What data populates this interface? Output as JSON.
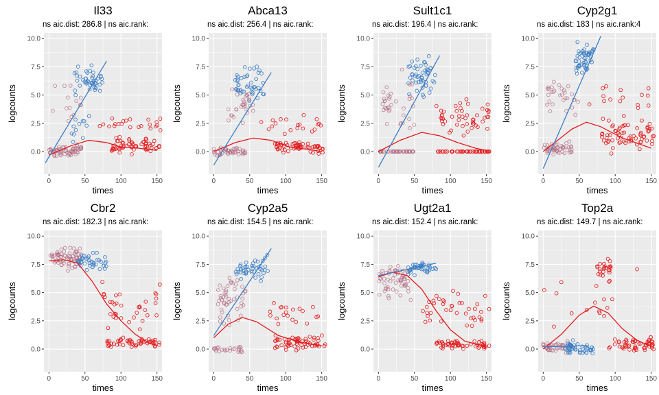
{
  "colors": {
    "panel_bg": "#ebebeb",
    "grid_major": "#ffffff",
    "tick_text": "#4d4d4d",
    "lineage_blue": "#3a7dc4",
    "lineage_red": "#e31a1c",
    "early_mixed": "#b0687f"
  },
  "chart_data": [
    {
      "type": "scatter",
      "title": "Il33",
      "subtitle": "ns aic.dist: 286.8 | ns aic.rank:",
      "xlabel": "times",
      "ylabel": "logcounts",
      "xlim": [
        -7,
        157
      ],
      "ylim": [
        -2,
        10.5
      ],
      "xticks": [
        0,
        50,
        100,
        150
      ],
      "yticks": [
        0.0,
        2.5,
        5.0,
        7.5,
        10.0
      ],
      "grid": true,
      "blue_trend": [
        [
          -5,
          -1
        ],
        [
          80,
          8
        ]
      ],
      "red_trend": [
        [
          0,
          -0.3
        ],
        [
          30,
          0.5
        ],
        [
          55,
          1.0
        ],
        [
          80,
          0.8
        ],
        [
          100,
          0.4
        ],
        [
          125,
          0.3
        ],
        [
          150,
          0.1
        ]
      ],
      "clusters": [
        {
          "x": [
            0,
            45
          ],
          "y": [
            -0.6,
            0.8
          ],
          "n": 60,
          "c": "early"
        },
        {
          "x": [
            0,
            45
          ],
          "y": [
            1.5,
            7.5
          ],
          "n": 14,
          "c": "early"
        },
        {
          "x": [
            35,
            75
          ],
          "y": [
            4.5,
            8.0
          ],
          "n": 45,
          "c": "blue"
        },
        {
          "x": [
            30,
            60
          ],
          "y": [
            0,
            4.5
          ],
          "n": 12,
          "c": "blue"
        },
        {
          "x": [
            85,
            155
          ],
          "y": [
            -0.5,
            1.5
          ],
          "n": 60,
          "c": "red"
        },
        {
          "x": [
            70,
            155
          ],
          "y": [
            1.5,
            3.5
          ],
          "n": 22,
          "c": "red"
        }
      ]
    },
    {
      "type": "scatter",
      "title": "Abca13",
      "subtitle": "ns aic.dist: 256.4 | ns aic.rank:",
      "xlabel": "times",
      "ylabel": "logcounts",
      "xlim": [
        -7,
        157
      ],
      "ylim": [
        -2,
        10.5
      ],
      "xticks": [
        0,
        50,
        100,
        150
      ],
      "yticks": [
        0.0,
        2.5,
        5.0,
        7.5,
        10.0
      ],
      "grid": true,
      "blue_trend": [
        [
          0,
          -1.2
        ],
        [
          80,
          7.0
        ]
      ],
      "red_trend": [
        [
          0,
          0.0
        ],
        [
          30,
          0.8
        ],
        [
          55,
          1.2
        ],
        [
          80,
          1.0
        ],
        [
          105,
          0.4
        ],
        [
          130,
          0.2
        ],
        [
          150,
          0.0
        ]
      ],
      "clusters": [
        {
          "x": [
            0,
            45
          ],
          "y": [
            -0.5,
            0.6
          ],
          "n": 45,
          "c": "early"
        },
        {
          "x": [
            20,
            55
          ],
          "y": [
            2.0,
            6.5
          ],
          "n": 30,
          "c": "early"
        },
        {
          "x": [
            30,
            70
          ],
          "y": [
            3.5,
            8.0
          ],
          "n": 45,
          "c": "blue"
        },
        {
          "x": [
            85,
            155
          ],
          "y": [
            -0.4,
            1.2
          ],
          "n": 60,
          "c": "red"
        },
        {
          "x": [
            60,
            150
          ],
          "y": [
            1.0,
            3.5
          ],
          "n": 20,
          "c": "red"
        }
      ]
    },
    {
      "type": "scatter",
      "title": "Sult1c1",
      "subtitle": "ns aic.dist: 196.4 | ns aic.rank:",
      "xlabel": "times",
      "ylabel": "logcounts",
      "xlim": [
        -7,
        157
      ],
      "ylim": [
        -2,
        10.5
      ],
      "xticks": [
        0,
        50,
        100,
        150
      ],
      "yticks": [
        0.0,
        2.5,
        5.0,
        7.5,
        10.0
      ],
      "grid": true,
      "blue_trend": [
        [
          0,
          -1.4
        ],
        [
          85,
          8.5
        ]
      ],
      "red_trend": [
        [
          0,
          0.0
        ],
        [
          30,
          1.0
        ],
        [
          60,
          1.7
        ],
        [
          85,
          1.4
        ],
        [
          110,
          0.8
        ],
        [
          135,
          0.3
        ],
        [
          150,
          0.1
        ]
      ],
      "clusters": [
        {
          "x": [
            0,
            50
          ],
          "y": [
            0,
            0
          ],
          "n": 40,
          "c": "early"
        },
        {
          "x": [
            5,
            50
          ],
          "y": [
            1.0,
            7.5
          ],
          "n": 35,
          "c": "early"
        },
        {
          "x": [
            40,
            80
          ],
          "y": [
            4.0,
            9.5
          ],
          "n": 50,
          "c": "blue"
        },
        {
          "x": [
            80,
            155
          ],
          "y": [
            0,
            0
          ],
          "n": 45,
          "c": "red"
        },
        {
          "x": [
            80,
            155
          ],
          "y": [
            0.5,
            5.5
          ],
          "n": 50,
          "c": "red"
        }
      ]
    },
    {
      "type": "scatter",
      "title": "Cyp2g1",
      "subtitle": "ns aic.dist: 183 | ns aic.rank:4",
      "xlabel": "times",
      "ylabel": "logcounts",
      "xlim": [
        -7,
        157
      ],
      "ylim": [
        -2,
        10.5
      ],
      "xticks": [
        0,
        50,
        100,
        150
      ],
      "yticks": [
        0.0,
        2.5,
        5.0,
        7.5,
        10.0
      ],
      "grid": true,
      "blue_trend": [
        [
          0,
          -1.5
        ],
        [
          80,
          10.2
        ]
      ],
      "red_trend": [
        [
          0,
          0.0
        ],
        [
          20,
          1.0
        ],
        [
          40,
          2.0
        ],
        [
          60,
          2.6
        ],
        [
          80,
          2.2
        ],
        [
          110,
          1.2
        ],
        [
          150,
          0.3
        ]
      ],
      "clusters": [
        {
          "x": [
            0,
            40
          ],
          "y": [
            -0.6,
            1.0
          ],
          "n": 45,
          "c": "early"
        },
        {
          "x": [
            5,
            50
          ],
          "y": [
            2.0,
            7.5
          ],
          "n": 30,
          "c": "early"
        },
        {
          "x": [
            45,
            70
          ],
          "y": [
            6.5,
            10.0
          ],
          "n": 50,
          "c": "blue"
        },
        {
          "x": [
            80,
            155
          ],
          "y": [
            -0.5,
            3.5
          ],
          "n": 70,
          "c": "red"
        },
        {
          "x": [
            60,
            150
          ],
          "y": [
            3.5,
            6.5
          ],
          "n": 15,
          "c": "red"
        }
      ]
    },
    {
      "type": "scatter",
      "title": "Cbr2",
      "subtitle": "ns aic.dist: 182.3 | ns aic.rank:",
      "xlabel": "times",
      "ylabel": "logcounts",
      "xlim": [
        -7,
        157
      ],
      "ylim": [
        -2,
        10.5
      ],
      "xticks": [
        0,
        50,
        100,
        150
      ],
      "yticks": [
        0.0,
        2.5,
        5.0,
        7.5,
        10.0
      ],
      "grid": true,
      "blue_trend": [],
      "red_trend": [
        [
          0,
          7.8
        ],
        [
          20,
          7.9
        ],
        [
          40,
          7.6
        ],
        [
          60,
          6.0
        ],
        [
          80,
          4.0
        ],
        [
          100,
          2.5
        ],
        [
          120,
          1.3
        ],
        [
          140,
          0.5
        ],
        [
          150,
          0.3
        ]
      ],
      "clusters": [
        {
          "x": [
            0,
            45
          ],
          "y": [
            6.8,
            9.3
          ],
          "n": 70,
          "c": "early"
        },
        {
          "x": [
            40,
            80
          ],
          "y": [
            6.5,
            8.8
          ],
          "n": 40,
          "c": "blue"
        },
        {
          "x": [
            80,
            155
          ],
          "y": [
            0,
            1.2
          ],
          "n": 55,
          "c": "red"
        },
        {
          "x": [
            70,
            155
          ],
          "y": [
            1.0,
            6.5
          ],
          "n": 35,
          "c": "red"
        }
      ]
    },
    {
      "type": "scatter",
      "title": "Cyp2a5",
      "subtitle": "ns aic.dist: 154.5 | ns aic.rank:",
      "xlabel": "times",
      "ylabel": "logcounts",
      "xlim": [
        -7,
        157
      ],
      "ylim": [
        -2,
        10.5
      ],
      "xticks": [
        0,
        50,
        100,
        150
      ],
      "yticks": [
        0.0,
        2.5,
        5.0,
        7.5,
        10.0
      ],
      "grid": true,
      "blue_trend": [
        [
          0,
          1.2
        ],
        [
          80,
          8.9
        ]
      ],
      "red_trend": [
        [
          0,
          1.0
        ],
        [
          20,
          2.2
        ],
        [
          40,
          2.8
        ],
        [
          60,
          2.4
        ],
        [
          90,
          1.2
        ],
        [
          120,
          0.6
        ],
        [
          150,
          0.3
        ]
      ],
      "clusters": [
        {
          "x": [
            0,
            40
          ],
          "y": [
            -0.5,
            0.5
          ],
          "n": 25,
          "c": "early"
        },
        {
          "x": [
            5,
            45
          ],
          "y": [
            1.0,
            7.5
          ],
          "n": 50,
          "c": "early"
        },
        {
          "x": [
            30,
            75
          ],
          "y": [
            5.5,
            8.8
          ],
          "n": 45,
          "c": "blue"
        },
        {
          "x": [
            85,
            155
          ],
          "y": [
            -0.5,
            1.5
          ],
          "n": 60,
          "c": "red"
        },
        {
          "x": [
            70,
            150
          ],
          "y": [
            1.5,
            4.5
          ],
          "n": 20,
          "c": "red"
        }
      ]
    },
    {
      "type": "scatter",
      "title": "Ugt2a1",
      "subtitle": "ns aic.dist: 152.4 | ns aic.rank:",
      "xlabel": "times",
      "ylabel": "logcounts",
      "xlim": [
        -7,
        157
      ],
      "ylim": [
        -2,
        10.5
      ],
      "xticks": [
        0,
        50,
        100,
        150
      ],
      "yticks": [
        0.0,
        2.5,
        5.0,
        7.5,
        10.0
      ],
      "grid": true,
      "blue_trend": [
        [
          0,
          6.5
        ],
        [
          80,
          7.6
        ]
      ],
      "red_trend": [
        [
          0,
          6.4
        ],
        [
          20,
          6.8
        ],
        [
          40,
          6.5
        ],
        [
          60,
          5.3
        ],
        [
          80,
          3.4
        ],
        [
          100,
          1.7
        ],
        [
          120,
          0.7
        ],
        [
          150,
          0.2
        ]
      ],
      "clusters": [
        {
          "x": [
            0,
            45
          ],
          "y": [
            4.0,
            8.3
          ],
          "n": 60,
          "c": "early"
        },
        {
          "x": [
            40,
            80
          ],
          "y": [
            6.3,
            8.0
          ],
          "n": 40,
          "c": "blue"
        },
        {
          "x": [
            80,
            155
          ],
          "y": [
            -0.3,
            1.0
          ],
          "n": 55,
          "c": "red"
        },
        {
          "x": [
            60,
            155
          ],
          "y": [
            1.0,
            5.5
          ],
          "n": 40,
          "c": "red"
        }
      ]
    },
    {
      "type": "scatter",
      "title": "Top2a",
      "subtitle": "ns aic.dist: 149.7 | ns aic.rank:",
      "xlabel": "times",
      "ylabel": "logcounts",
      "xlim": [
        -7,
        157
      ],
      "ylim": [
        -2,
        10.5
      ],
      "xticks": [
        0,
        50,
        100,
        150
      ],
      "yticks": [
        0.0,
        2.5,
        5.0,
        7.5,
        10.0
      ],
      "grid": true,
      "blue_trend": [
        [
          0,
          0.2
        ],
        [
          60,
          0.3
        ]
      ],
      "red_trend": [
        [
          0,
          0.0
        ],
        [
          25,
          1.3
        ],
        [
          50,
          3.0
        ],
        [
          70,
          3.8
        ],
        [
          90,
          3.2
        ],
        [
          110,
          1.8
        ],
        [
          130,
          0.8
        ],
        [
          150,
          0.2
        ]
      ],
      "clusters": [
        {
          "x": [
            0,
            40
          ],
          "y": [
            -0.5,
            0.8
          ],
          "n": 40,
          "c": "early"
        },
        {
          "x": [
            30,
            70
          ],
          "y": [
            -0.6,
            0.8
          ],
          "n": 45,
          "c": "blue"
        },
        {
          "x": [
            75,
            95
          ],
          "y": [
            5.5,
            8.8
          ],
          "n": 25,
          "c": "red"
        },
        {
          "x": [
            90,
            155
          ],
          "y": [
            -0.5,
            1.2
          ],
          "n": 55,
          "c": "red"
        },
        {
          "x": [
            0,
            150
          ],
          "y": [
            1.5,
            7.5
          ],
          "n": 15,
          "c": "red"
        }
      ]
    }
  ]
}
